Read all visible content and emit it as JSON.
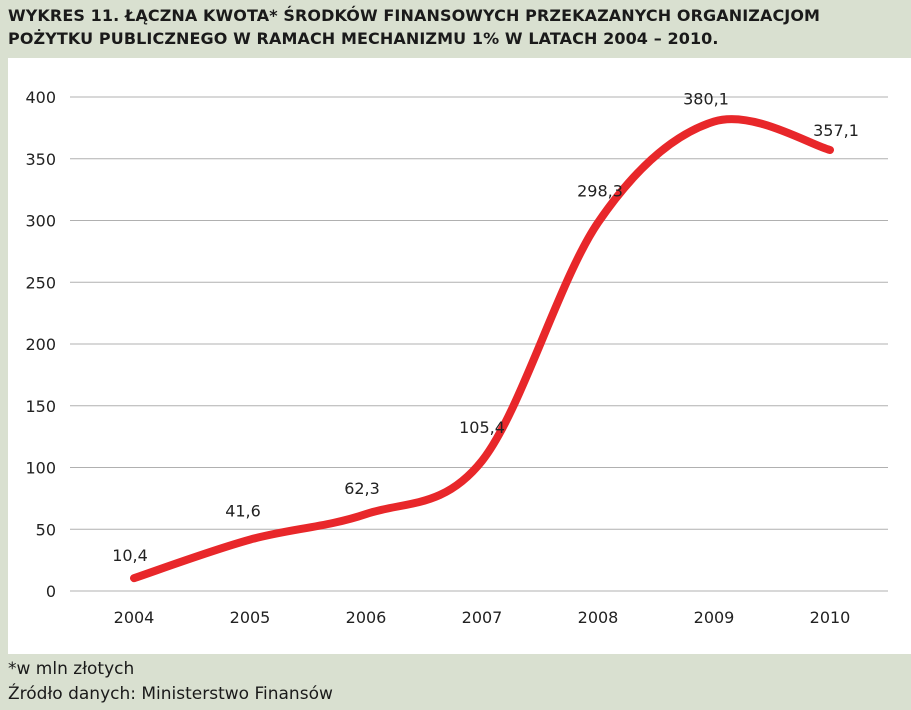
{
  "chart_data": {
    "type": "line",
    "title": "WYKRES 11. ŁĄCZNA KWOTA* ŚRODKÓW FINANSOWYCH PRZEKAZANYCH ORGANIZACJOM POŻYTKU PUBLICZNEGO W RAMACH MECHANIZMU 1% W LATACH 2004 – 2010.",
    "categories": [
      "2004",
      "2005",
      "2006",
      "2007",
      "2008",
      "2009",
      "2010"
    ],
    "series": [
      {
        "values": [
          10.4,
          41.6,
          62.3,
          105.4,
          298.3,
          380.1,
          357.1
        ],
        "labels": [
          "10,4",
          "41,6",
          "62,3",
          "105,4",
          "298,3",
          "380,1",
          "357,1"
        ],
        "color": "#e8272a"
      }
    ],
    "yticks": [
      "0",
      "50",
      "100",
      "150",
      "200",
      "250",
      "300",
      "350",
      "400"
    ],
    "ylim": [
      0,
      400
    ],
    "grid": true,
    "xlabel": "",
    "ylabel": ""
  },
  "footnote": "*w mln złotych",
  "source": "Źródło danych: Ministerstwo Finansów",
  "colors": {
    "background": "#d9e0d0",
    "panel": "#ffffff",
    "grid": "#b0b0b0",
    "line": "#e8272a"
  }
}
